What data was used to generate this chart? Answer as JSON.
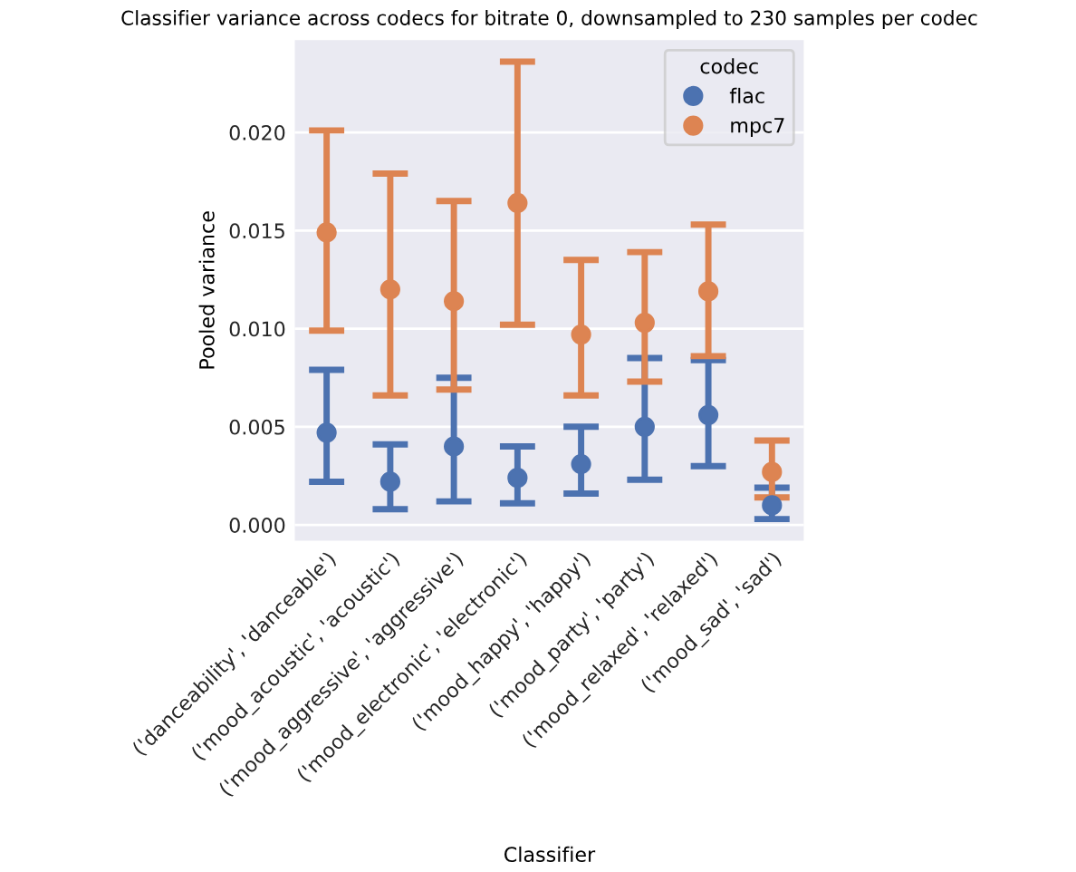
{
  "chart_data": {
    "type": "scatter",
    "title": "Classifier variance across codecs for bitrate 0, downsampled to 230 samples per codec",
    "xlabel": "Classifier",
    "ylabel": "Pooled variance",
    "legend_title": "codec",
    "categories": [
      "('danceability', 'danceable')",
      "('mood_acoustic', 'acoustic')",
      "('mood_aggressive', 'aggressive')",
      "('mood_electronic', 'electronic')",
      "('mood_happy', 'happy')",
      "('mood_party', 'party')",
      "('mood_relaxed', 'relaxed')",
      "('mood_sad', 'sad')"
    ],
    "series": [
      {
        "name": "flac",
        "color": "#4c72b0",
        "values": [
          0.0047,
          0.0022,
          0.004,
          0.0024,
          0.0031,
          0.005,
          0.0056,
          0.001
        ],
        "errors": [
          [
            0.0022,
            0.0079
          ],
          [
            0.0008,
            0.0041
          ],
          [
            0.0012,
            0.0075
          ],
          [
            0.0011,
            0.004
          ],
          [
            0.0016,
            0.005
          ],
          [
            0.0023,
            0.0085
          ],
          [
            0.003,
            0.0084
          ],
          [
            0.0003,
            0.0019
          ]
        ]
      },
      {
        "name": "mpc7",
        "color": "#dd8452",
        "values": [
          0.0149,
          0.012,
          0.0114,
          0.0164,
          0.0097,
          0.0103,
          0.0119,
          0.0027
        ],
        "errors": [
          [
            0.0099,
            0.0201
          ],
          [
            0.0066,
            0.0179
          ],
          [
            0.0069,
            0.0165
          ],
          [
            0.0102,
            0.0236
          ],
          [
            0.0066,
            0.0135
          ],
          [
            0.0073,
            0.0139
          ],
          [
            0.0086,
            0.0153
          ],
          [
            0.0014,
            0.0043
          ]
        ]
      }
    ],
    "ylim": [
      -0.0008,
      0.0247
    ],
    "yticks": [
      {
        "value": 0,
        "label": "0.000"
      },
      {
        "value": 0.005,
        "label": "0.005"
      },
      {
        "value": 0.01,
        "label": "0.010"
      },
      {
        "value": 0.015,
        "label": "0.015"
      },
      {
        "value": 0.02,
        "label": "0.020"
      }
    ],
    "grid": "y",
    "legend": "top right",
    "marker": "circle"
  }
}
